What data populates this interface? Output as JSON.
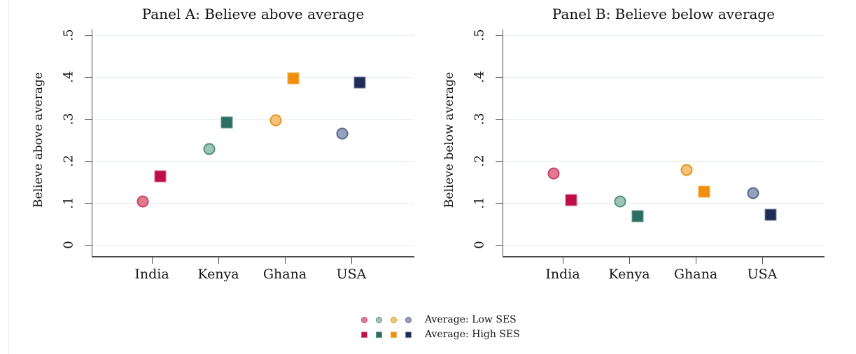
{
  "figure": {
    "background": "#ffffff",
    "grid_color": "#e4eef1",
    "axis_color": "#4d4d4d",
    "text_color": "#161616"
  },
  "chart_data": [
    {
      "type": "scatter",
      "title": "Panel A: Believe above average",
      "ylabel": "Believe above average",
      "xlabel": "",
      "categories": [
        "India",
        "Kenya",
        "Ghana",
        "USA"
      ],
      "ylim": [
        0,
        0.5
      ],
      "ytick_labels": [
        "0",
        ".1",
        ".2",
        ".3",
        ".4",
        ".5"
      ],
      "ytick_values": [
        0,
        0.1,
        0.2,
        0.3,
        0.4,
        0.5
      ],
      "grid": "horizontal",
      "series": [
        {
          "name": "Average: Low SES",
          "marker": "circle",
          "values": [
            0.103,
            0.228,
            0.297,
            0.265
          ]
        },
        {
          "name": "Average: High SES",
          "marker": "square",
          "values": [
            0.164,
            0.292,
            0.397,
            0.386
          ]
        }
      ]
    },
    {
      "type": "scatter",
      "title": "Panel B: Believe below average",
      "ylabel": "Believe below average",
      "xlabel": "",
      "categories": [
        "India",
        "Kenya",
        "Ghana",
        "USA"
      ],
      "ylim": [
        0,
        0.5
      ],
      "ytick_labels": [
        "0",
        ".1",
        ".2",
        ".3",
        ".4",
        ".5"
      ],
      "ytick_values": [
        0,
        0.1,
        0.2,
        0.3,
        0.4,
        0.5
      ],
      "grid": "horizontal",
      "series": [
        {
          "name": "Average: Low SES",
          "marker": "circle",
          "values": [
            0.17,
            0.104,
            0.178,
            0.123
          ]
        },
        {
          "name": "Average: High SES",
          "marker": "square",
          "values": [
            0.107,
            0.068,
            0.126,
            0.071
          ]
        }
      ]
    }
  ],
  "country_colors": {
    "low_fill": [
      "#e07b92",
      "#9dc4b5",
      "#f5c37c",
      "#95a2bd"
    ],
    "low_stroke": [
      "#c64367",
      "#55907e",
      "#e8941f",
      "#5b6a90"
    ],
    "high_fill": [
      "#c00d45",
      "#2c6f62",
      "#ef8f10",
      "#1f2c55"
    ],
    "high_stroke": [
      "#da6e8e",
      "#659c8e",
      "#f5b55c",
      "#7c89a8"
    ]
  },
  "legend": {
    "position": "bottom-center",
    "items": [
      {
        "label": "Average: Low SES",
        "marker": "circle"
      },
      {
        "label": "Average: High SES",
        "marker": "square"
      }
    ]
  }
}
